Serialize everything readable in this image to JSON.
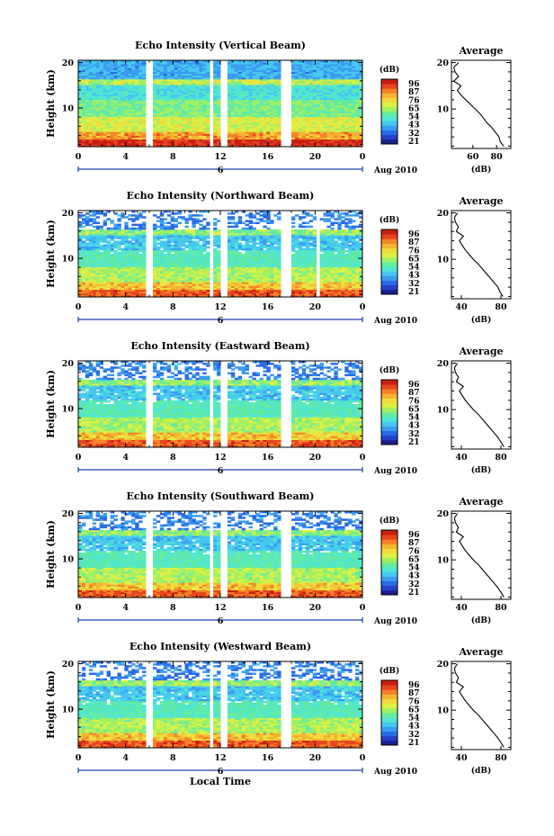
{
  "chart_data": [
    {
      "type": "heatmap",
      "title": "Echo Intensity (Vertical Beam)",
      "ylabel": "Height (km)",
      "xlabel": "",
      "x_ticks": [
        "0",
        "4",
        "8",
        "12",
        "16",
        "20",
        "0"
      ],
      "date_label": "Aug 2010",
      "day_label": "6",
      "xlim_hours": [
        0,
        24
      ],
      "ylim_km": [
        1.5,
        20.5
      ],
      "y_ticks": [
        "10",
        "20"
      ],
      "colorbar": {
        "unit": "(dB)",
        "labels": [
          "96",
          "87",
          "76",
          "65",
          "54",
          "43",
          "32",
          "21"
        ]
      },
      "data_gaps_hours": [
        [
          5.6,
          6.4
        ],
        [
          11.0,
          11.5
        ],
        [
          12.0,
          12.5
        ],
        [
          17.0,
          18.0
        ]
      ],
      "profile": {
        "title": "Average",
        "xlabel": "(dB)",
        "x_ticks": [
          "60",
          "80"
        ],
        "xlim": [
          42,
          92
        ],
        "y_ticks": [
          "10",
          "20"
        ],
        "heights_km": [
          2,
          3,
          4,
          5,
          6,
          7,
          8,
          9,
          10,
          11,
          12,
          13,
          14,
          15,
          16,
          17,
          18,
          19,
          20
        ],
        "values_db": [
          86,
          83,
          82,
          79,
          76,
          72,
          69,
          66,
          62,
          58,
          54,
          50,
          47,
          50,
          44,
          48,
          45,
          44,
          48
        ]
      }
    },
    {
      "type": "heatmap",
      "title": "Echo Intensity (Northward Beam)",
      "ylabel": "Height (km)",
      "x_ticks": [
        "0",
        "4",
        "8",
        "12",
        "16",
        "20",
        "0"
      ],
      "date_label": "Aug 2010",
      "day_label": "6",
      "xlim_hours": [
        0,
        24
      ],
      "ylim_km": [
        1.5,
        20.5
      ],
      "y_ticks": [
        "10",
        "20"
      ],
      "colorbar": {
        "unit": "(dB)",
        "labels": [
          "96",
          "87",
          "76",
          "65",
          "54",
          "43",
          "32",
          "21"
        ]
      },
      "data_gaps_hours": [
        [
          5.6,
          6.4
        ],
        [
          11.0,
          11.5
        ],
        [
          12.0,
          12.5
        ],
        [
          17.0,
          18.0
        ],
        [
          20.0,
          20.4
        ]
      ],
      "profile": {
        "title": "Average",
        "xlabel": "(dB)",
        "x_ticks": [
          "40",
          "80"
        ],
        "xlim": [
          30,
          90
        ],
        "y_ticks": [
          "10",
          "20"
        ],
        "heights_km": [
          2,
          3,
          4,
          5,
          6,
          7,
          8,
          9,
          10,
          11,
          12,
          13,
          14,
          15,
          16,
          17,
          18,
          19,
          20
        ],
        "values_db": [
          82,
          79,
          77,
          73,
          69,
          65,
          61,
          57,
          52,
          48,
          44,
          41,
          38,
          42,
          35,
          37,
          34,
          33,
          36
        ]
      }
    },
    {
      "type": "heatmap",
      "title": "Echo Intensity (Eastward Beam)",
      "ylabel": "Height (km)",
      "x_ticks": [
        "0",
        "4",
        "8",
        "12",
        "16",
        "20",
        "0"
      ],
      "date_label": "Aug 2010",
      "day_label": "6",
      "xlim_hours": [
        0,
        24
      ],
      "ylim_km": [
        1.5,
        20.5
      ],
      "y_ticks": [
        "10",
        "20"
      ],
      "colorbar": {
        "unit": "(dB)",
        "labels": [
          "96",
          "87",
          "76",
          "65",
          "54",
          "43",
          "32",
          "21"
        ]
      },
      "data_gaps_hours": [
        [
          5.6,
          6.4
        ],
        [
          11.0,
          11.5
        ],
        [
          12.0,
          12.5
        ],
        [
          17.0,
          18.0
        ]
      ],
      "profile": {
        "title": "Average",
        "xlabel": "(dB)",
        "x_ticks": [
          "40",
          "80"
        ],
        "xlim": [
          30,
          90
        ],
        "y_ticks": [
          "10",
          "20"
        ],
        "heights_km": [
          2,
          3,
          4,
          5,
          6,
          7,
          8,
          9,
          10,
          11,
          12,
          13,
          14,
          15,
          16,
          17,
          18,
          19,
          20
        ],
        "values_db": [
          83,
          80,
          77,
          73,
          69,
          65,
          61,
          57,
          52,
          48,
          44,
          41,
          38,
          42,
          35,
          37,
          34,
          33,
          36
        ]
      }
    },
    {
      "type": "heatmap",
      "title": "Echo Intensity (Southward Beam)",
      "ylabel": "Height (km)",
      "x_ticks": [
        "0",
        "4",
        "8",
        "12",
        "16",
        "20",
        "0"
      ],
      "date_label": "Aug 2010",
      "day_label": "6",
      "xlim_hours": [
        0,
        24
      ],
      "ylim_km": [
        1.5,
        20.5
      ],
      "y_ticks": [
        "10",
        "20"
      ],
      "colorbar": {
        "unit": "(dB)",
        "labels": [
          "96",
          "87",
          "76",
          "65",
          "54",
          "43",
          "32",
          "21"
        ]
      },
      "data_gaps_hours": [
        [
          5.6,
          6.4
        ],
        [
          11.0,
          11.5
        ],
        [
          12.0,
          12.5
        ],
        [
          17.0,
          18.0
        ]
      ],
      "profile": {
        "title": "Average",
        "xlabel": "(dB)",
        "x_ticks": [
          "40",
          "80"
        ],
        "xlim": [
          30,
          90
        ],
        "y_ticks": [
          "10",
          "20"
        ],
        "heights_km": [
          2,
          3,
          4,
          5,
          6,
          7,
          8,
          9,
          10,
          11,
          12,
          13,
          14,
          15,
          16,
          17,
          18,
          19,
          20
        ],
        "values_db": [
          83,
          80,
          77,
          73,
          69,
          65,
          61,
          57,
          52,
          48,
          44,
          41,
          38,
          42,
          35,
          37,
          34,
          33,
          36
        ]
      }
    },
    {
      "type": "heatmap",
      "title": "Echo Intensity (Westward Beam)",
      "ylabel": "Height (km)",
      "x_ticks": [
        "0",
        "4",
        "8",
        "12",
        "16",
        "20",
        "0"
      ],
      "date_label": "Aug 2010",
      "day_label": "6",
      "xlabel": "Local Time",
      "xlim_hours": [
        0,
        24
      ],
      "ylim_km": [
        1.5,
        20.5
      ],
      "y_ticks": [
        "10",
        "20"
      ],
      "colorbar": {
        "unit": "(dB)",
        "labels": [
          "96",
          "87",
          "76",
          "65",
          "54",
          "43",
          "32",
          "21"
        ]
      },
      "data_gaps_hours": [
        [
          5.6,
          6.4
        ],
        [
          11.0,
          11.5
        ],
        [
          12.0,
          12.5
        ],
        [
          17.0,
          18.0
        ]
      ],
      "profile": {
        "title": "Average",
        "xlabel": "(dB)",
        "x_ticks": [
          "40",
          "80"
        ],
        "xlim": [
          30,
          90
        ],
        "y_ticks": [
          "10",
          "20"
        ],
        "heights_km": [
          2,
          3,
          4,
          5,
          6,
          7,
          8,
          9,
          10,
          11,
          12,
          13,
          14,
          15,
          16,
          17,
          18,
          19,
          20
        ],
        "values_db": [
          83,
          80,
          77,
          73,
          69,
          65,
          61,
          57,
          52,
          48,
          44,
          41,
          38,
          42,
          35,
          37,
          34,
          33,
          36
        ]
      }
    }
  ],
  "colormap": [
    "#1e1e8c",
    "#2840c8",
    "#2a6ae6",
    "#3a9cf0",
    "#46c8f0",
    "#50e6d2",
    "#64eba0",
    "#a0f064",
    "#dcf046",
    "#f0dc3c",
    "#f5b432",
    "#f58228",
    "#e6461e",
    "#c81e14"
  ]
}
